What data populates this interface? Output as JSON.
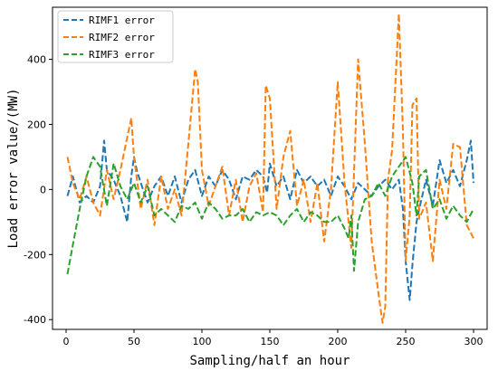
{
  "chart_data": {
    "type": "line",
    "title": "",
    "xlabel": "Sampling/half an hour",
    "ylabel": "Load error value/(MW)",
    "xlim": [
      -10,
      310
    ],
    "ylim": [
      -430,
      560
    ],
    "xticks": [
      0,
      50,
      100,
      150,
      200,
      250,
      300
    ],
    "yticks": [
      -400,
      -200,
      0,
      200,
      400
    ],
    "grid": false,
    "legend": "top-left",
    "line_style": "dashed",
    "series": [
      {
        "name": "RIMF1 error",
        "color": "#1f77b4",
        "x": [
          1,
          5,
          10,
          15,
          20,
          25,
          28,
          30,
          35,
          40,
          45,
          48,
          50,
          52,
          55,
          60,
          65,
          70,
          75,
          80,
          85,
          90,
          95,
          100,
          105,
          110,
          115,
          120,
          125,
          130,
          135,
          140,
          145,
          148,
          150,
          155,
          160,
          165,
          170,
          175,
          180,
          185,
          190,
          195,
          200,
          205,
          210,
          215,
          220,
          225,
          230,
          235,
          240,
          245,
          248,
          250,
          253,
          255,
          258,
          260,
          265,
          270,
          275,
          280,
          285,
          290,
          295,
          298,
          300
        ],
        "y": [
          -20,
          40,
          -40,
          -20,
          -40,
          10,
          150,
          60,
          30,
          -20,
          -100,
          40,
          100,
          60,
          20,
          -40,
          10,
          40,
          -20,
          40,
          -40,
          30,
          60,
          -20,
          40,
          10,
          60,
          30,
          -30,
          40,
          30,
          60,
          40,
          -10,
          80,
          10,
          40,
          -30,
          60,
          20,
          40,
          10,
          30,
          -20,
          40,
          10,
          -30,
          20,
          0,
          -20,
          10,
          30,
          0,
          30,
          -60,
          -220,
          -340,
          -230,
          -100,
          -60,
          30,
          -50,
          90,
          20,
          60,
          10,
          90,
          150,
          20
        ]
      },
      {
        "name": "RIMF2 error",
        "color": "#ff7f0e",
        "x": [
          1,
          5,
          10,
          15,
          20,
          25,
          30,
          35,
          40,
          45,
          48,
          50,
          55,
          60,
          65,
          70,
          75,
          80,
          85,
          90,
          95,
          97,
          100,
          105,
          110,
          115,
          120,
          125,
          130,
          135,
          140,
          145,
          147,
          150,
          155,
          160,
          165,
          170,
          175,
          180,
          185,
          190,
          195,
          200,
          205,
          210,
          215,
          220,
          225,
          230,
          233,
          235,
          237,
          240,
          245,
          248,
          250,
          253,
          255,
          258,
          260,
          265,
          270,
          275,
          280,
          285,
          290,
          295,
          300
        ],
        "y": [
          100,
          20,
          -30,
          40,
          -40,
          -80,
          60,
          -30,
          60,
          160,
          220,
          100,
          -60,
          30,
          -110,
          40,
          -60,
          0,
          -80,
          140,
          370,
          330,
          60,
          -50,
          10,
          70,
          -80,
          30,
          -100,
          10,
          50,
          -70,
          320,
          280,
          -60,
          100,
          180,
          -50,
          30,
          -100,
          20,
          -160,
          0,
          330,
          20,
          -180,
          400,
          140,
          -160,
          -320,
          -410,
          -360,
          30,
          120,
          540,
          180,
          -220,
          -80,
          260,
          280,
          -90,
          -40,
          -220,
          30,
          -60,
          140,
          130,
          -110,
          -150
        ]
      },
      {
        "name": "RIMF3 error",
        "color": "#2ca02c",
        "x": [
          1,
          5,
          10,
          15,
          20,
          25,
          30,
          35,
          40,
          45,
          50,
          55,
          60,
          65,
          70,
          75,
          80,
          85,
          90,
          95,
          100,
          105,
          110,
          115,
          120,
          125,
          130,
          135,
          140,
          145,
          150,
          155,
          160,
          165,
          170,
          175,
          180,
          185,
          190,
          195,
          200,
          205,
          208,
          210,
          212,
          215,
          220,
          225,
          230,
          235,
          240,
          245,
          250,
          255,
          258,
          260,
          265,
          270,
          275,
          280,
          285,
          290,
          295,
          300
        ],
        "y": [
          -260,
          -170,
          -60,
          40,
          100,
          70,
          -50,
          80,
          10,
          -30,
          20,
          -40,
          10,
          -80,
          -60,
          -80,
          -100,
          -50,
          -60,
          -40,
          -90,
          -40,
          -60,
          -90,
          -80,
          -80,
          -60,
          -100,
          -70,
          -80,
          -70,
          -80,
          -110,
          -80,
          -60,
          -100,
          -70,
          -80,
          -100,
          -100,
          -80,
          -120,
          -150,
          -80,
          -250,
          -100,
          -30,
          -20,
          20,
          -20,
          40,
          70,
          100,
          20,
          -80,
          40,
          60,
          -60,
          -30,
          -90,
          -50,
          -80,
          -100,
          -60
        ]
      }
    ]
  }
}
